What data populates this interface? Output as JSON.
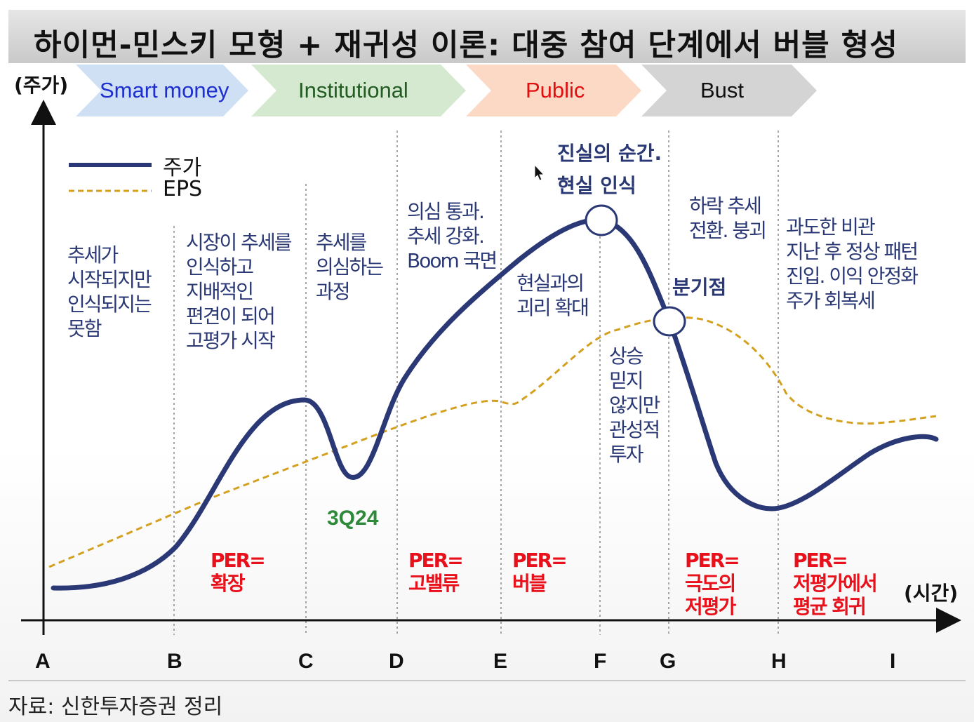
{
  "title": "하이먼-민스키 모형 + 재귀성 이론: 대중 참여 단계에서 버블 형성",
  "phases": [
    {
      "label": "Smart money",
      "color": "#1e2fd0",
      "fill": "#cfe0f4",
      "bold": false
    },
    {
      "label": "Institutional",
      "color": "#235c23",
      "fill": "#d4e9cf",
      "bold": false
    },
    {
      "label": "Public",
      "color": "#e01010",
      "fill": "#fbd9c5",
      "bold": false
    },
    {
      "label": "Bust",
      "color": "#111111",
      "fill": "#d4d4d4",
      "bold": false
    }
  ],
  "axes": {
    "y_label": "(주가)",
    "x_label": "(시간)",
    "ticks": [
      "A",
      "B",
      "C",
      "D",
      "E",
      "F",
      "G",
      "H",
      "I"
    ]
  },
  "legend": [
    {
      "label": "주가",
      "color": "#2a3875",
      "style": "solid"
    },
    {
      "label": "EPS",
      "color": "#d4a020",
      "style": "dashed"
    }
  ],
  "annotations": {
    "a": "추세가\n시작되지만\n인식되지는\n못함",
    "b": "시장이 추세를\n인식하고\n지배적인\n편견이 되어\n고평가 시작",
    "c": "추세를\n의심하는\n과정",
    "d": "의심 통과.\n추세 강화.\nBoom 국면",
    "e": "현실과의\n괴리 확대",
    "f_top": "진실의 순간.\n현실 인식",
    "f_mid": "상승\n믿지\n않지만\n관성적\n투자",
    "g_top": "하락 추세\n전환. 붕괴",
    "g_mid": "분기점",
    "h": "과도한 비관\n지난 후 정상 패턴\n진입. 이익 안정화\n주가 회복세",
    "marker_3q24": "3Q24"
  },
  "per_labels": {
    "b": "PER=\n확장",
    "d": "PER=\n고밸류",
    "e": "PER=\n버블",
    "g": "PER=\n극도의\n저평가",
    "h": "PER=\n저평가에서\n평균 회귀"
  },
  "source": "자료: 신한투자증권 정리",
  "colors": {
    "price_line": "#2a3875",
    "eps_line": "#d4a020",
    "per_text": "#e8101a",
    "annotation_text": "#2a3875",
    "marker_3q24": "#2e8a3a"
  }
}
